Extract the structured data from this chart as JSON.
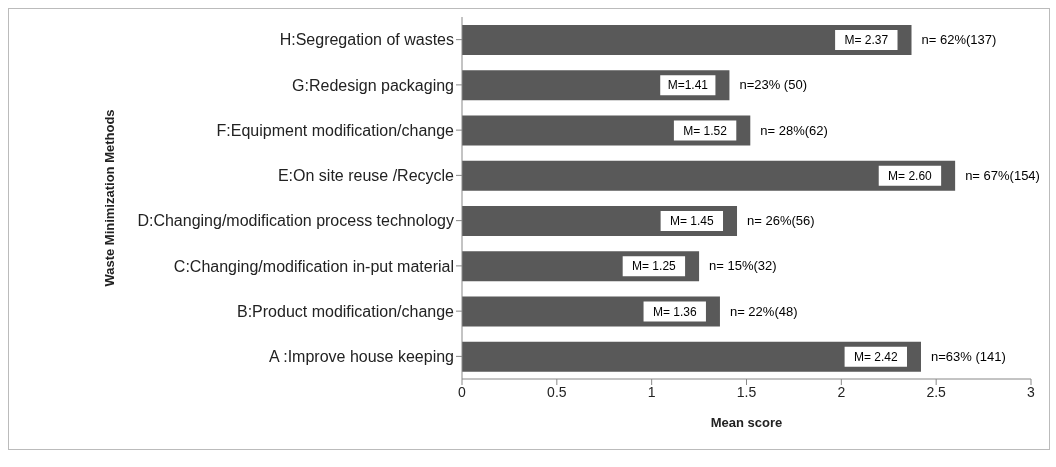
{
  "chart_data": {
    "type": "bar",
    "orientation": "horizontal",
    "xlabel": "Mean score",
    "ylabel": "Waste Minimization Methods",
    "categories": [
      "H:Segregation of wastes",
      "G:Redesign packaging",
      "F:Equipment modification/change",
      "E:On site reuse /Recycle",
      "D:Changing/modification process technology",
      "C:Changing/modification in-put material",
      "B:Product modification/change",
      "A :Improve house keeping"
    ],
    "values": [
      2.37,
      1.41,
      1.52,
      2.6,
      1.45,
      1.25,
      1.36,
      2.42
    ],
    "value_labels": [
      "M= 2.37",
      "M=1.41",
      "M= 1.52",
      "M= 2.60",
      "M= 1.45",
      "M= 1.25",
      "M= 1.36",
      "M= 2.42"
    ],
    "color": "#595959",
    "xlim": [
      0,
      3
    ],
    "xticks": [
      0,
      0.5,
      1,
      1.5,
      2,
      2.5,
      3
    ],
    "grid": false,
    "legend": false,
    "annotations": [
      {
        "text": "n= 62%(137)",
        "x": 2.37,
        "y": "H:Segregation of wastes"
      },
      {
        "text": "n=23% (50)",
        "x": 1.41,
        "y": "G:Redesign packaging"
      },
      {
        "text": "n= 28%(62)",
        "x": 1.52,
        "y": "F:Equipment modification/change"
      },
      {
        "text": "n= 67%(154)",
        "x": 2.6,
        "y": "E:On site reuse /Recycle"
      },
      {
        "text": "n= 26%(56)",
        "x": 1.45,
        "y": "D:Changing/modification process technology"
      },
      {
        "text": "n= 15%(32)",
        "x": 1.25,
        "y": "C:Changing/modification in-put material"
      },
      {
        "text": "n= 22%(48)",
        "x": 1.36,
        "y": "B:Product modification/change"
      },
      {
        "text": "n=63% (141)",
        "x": 2.42,
        "y": "A :Improve house keeping"
      }
    ]
  }
}
